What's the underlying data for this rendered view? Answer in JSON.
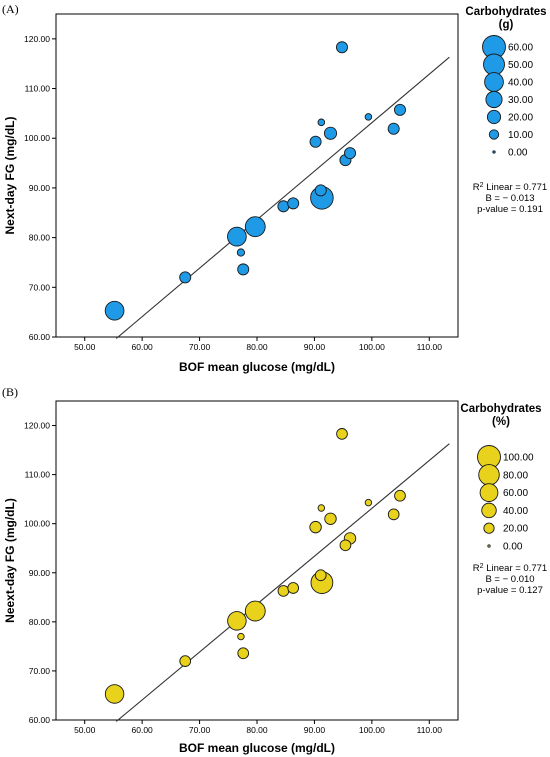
{
  "chart_data": [
    {
      "type": "scatter",
      "panel": "(A)",
      "xlabel": "BOF mean glucose (mg/dL)",
      "ylabel": "Next-day FG (mg/dL)",
      "xlim": [
        45,
        115
      ],
      "ylim": [
        60,
        125
      ],
      "xticks": [
        "50.00",
        "60.00",
        "70.00",
        "80.00",
        "90.00",
        "100.00",
        "110.00"
      ],
      "yticks": [
        "60.00",
        "70.00",
        "80.00",
        "90.00",
        "100.00",
        "110.00",
        "120.00"
      ],
      "fit_line": {
        "x": [
          55.5,
          113.5
        ],
        "y": [
          59.7,
          116.3
        ]
      },
      "legend": {
        "title": [
          "Carbohydrates",
          "(g)"
        ],
        "items": [
          {
            "label": "60.00",
            "value": 60
          },
          {
            "label": "50.00",
            "value": 50
          },
          {
            "label": "40.00",
            "value": 40
          },
          {
            "label": "30.00",
            "value": 30
          },
          {
            "label": "20.00",
            "value": 20
          },
          {
            "label": "10.00",
            "value": 10
          },
          {
            "label": "0.00",
            "value": 0
          }
        ]
      },
      "stats": {
        "r2_label": "R",
        "r2_sup": "2",
        "r2_rest": " Linear = 0.771",
        "b": "B = − 0.013",
        "p": "p-value = 0.191"
      },
      "color": "#1f9ae6",
      "max_value": 60,
      "points": [
        {
          "x": 55.2,
          "y": 65.3,
          "size": 40
        },
        {
          "x": 67.5,
          "y": 72.0,
          "size": 14
        },
        {
          "x": 76.5,
          "y": 80.2,
          "size": 40
        },
        {
          "x": 77.2,
          "y": 77.0,
          "size": 6
        },
        {
          "x": 77.6,
          "y": 73.6,
          "size": 14
        },
        {
          "x": 79.7,
          "y": 82.2,
          "size": 45
        },
        {
          "x": 84.6,
          "y": 86.3,
          "size": 14
        },
        {
          "x": 86.3,
          "y": 86.9,
          "size": 14
        },
        {
          "x": 90.2,
          "y": 99.3,
          "size": 14
        },
        {
          "x": 91.1,
          "y": 89.5,
          "size": 14
        },
        {
          "x": 91.2,
          "y": 103.2,
          "size": 5
        },
        {
          "x": 91.3,
          "y": 88.0,
          "size": 58
        },
        {
          "x": 92.8,
          "y": 101.0,
          "size": 17
        },
        {
          "x": 94.8,
          "y": 118.3,
          "size": 14
        },
        {
          "x": 95.4,
          "y": 95.6,
          "size": 14
        },
        {
          "x": 96.2,
          "y": 97.0,
          "size": 14
        },
        {
          "x": 99.4,
          "y": 104.3,
          "size": 5
        },
        {
          "x": 103.8,
          "y": 101.9,
          "size": 14
        },
        {
          "x": 104.9,
          "y": 105.7,
          "size": 14
        }
      ]
    },
    {
      "type": "scatter",
      "panel": "(B)",
      "xlabel": "BOF mean glucose (mg/dL)",
      "ylabel": "Neext-day FG (mg/dL)",
      "xlim": [
        45,
        115
      ],
      "ylim": [
        60,
        125
      ],
      "xticks": [
        "50.00",
        "60.00",
        "70.00",
        "80.00",
        "90.00",
        "100.00",
        "110.00"
      ],
      "yticks": [
        "60.00",
        "70.00",
        "80.00",
        "90.00",
        "100.00",
        "110.00",
        "120.00"
      ],
      "fit_line": {
        "x": [
          55.5,
          113.5
        ],
        "y": [
          59.7,
          116.3
        ]
      },
      "legend": {
        "title": [
          "Carbohydrates",
          "(%)"
        ],
        "items": [
          {
            "label": "100.00",
            "value": 100
          },
          {
            "label": "80.00",
            "value": 80
          },
          {
            "label": "60.00",
            "value": 60
          },
          {
            "label": "40.00",
            "value": 40
          },
          {
            "label": "20.00",
            "value": 20
          },
          {
            "label": "0.00",
            "value": 0
          }
        ]
      },
      "stats": {
        "r2_label": "R",
        "r2_sup": "2",
        "r2_rest": " Linear = 0.771",
        "b": "B = − 0.010",
        "p": "p-value = 0.127"
      },
      "color": "#e8d21c",
      "max_value": 100,
      "points": [
        {
          "x": 55.2,
          "y": 65.3,
          "size": 65
        },
        {
          "x": 67.5,
          "y": 72.0,
          "size": 22
        },
        {
          "x": 76.5,
          "y": 80.2,
          "size": 65
        },
        {
          "x": 77.2,
          "y": 77.0,
          "size": 8
        },
        {
          "x": 77.6,
          "y": 73.6,
          "size": 22
        },
        {
          "x": 79.7,
          "y": 82.2,
          "size": 75
        },
        {
          "x": 84.6,
          "y": 86.3,
          "size": 22
        },
        {
          "x": 86.3,
          "y": 86.9,
          "size": 22
        },
        {
          "x": 90.2,
          "y": 99.3,
          "size": 25
        },
        {
          "x": 91.1,
          "y": 89.5,
          "size": 22
        },
        {
          "x": 91.2,
          "y": 103.2,
          "size": 8
        },
        {
          "x": 91.3,
          "y": 88.0,
          "size": 90
        },
        {
          "x": 92.8,
          "y": 101.0,
          "size": 25
        },
        {
          "x": 94.8,
          "y": 118.3,
          "size": 22
        },
        {
          "x": 95.4,
          "y": 95.6,
          "size": 22
        },
        {
          "x": 96.2,
          "y": 97.0,
          "size": 25
        },
        {
          "x": 99.4,
          "y": 104.3,
          "size": 8
        },
        {
          "x": 103.8,
          "y": 101.9,
          "size": 22
        },
        {
          "x": 104.9,
          "y": 105.7,
          "size": 22
        }
      ]
    }
  ]
}
